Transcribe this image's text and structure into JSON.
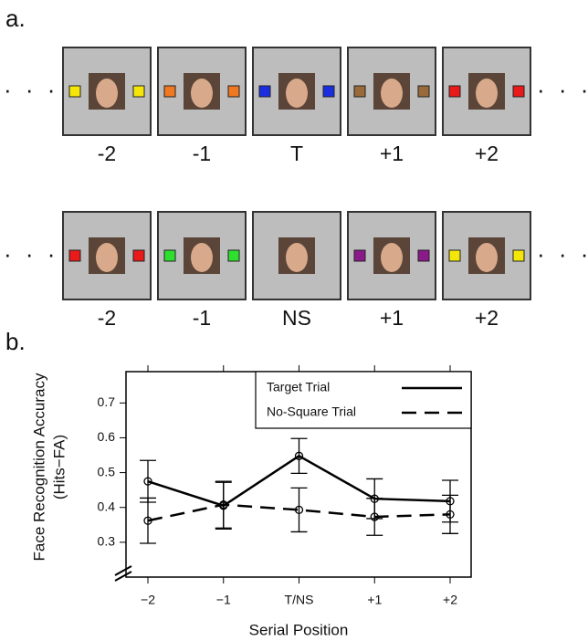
{
  "panel_a": {
    "label": "a.",
    "ellipsis": "· · ·",
    "rows": [
      {
        "frames": [
          {
            "label": "-2",
            "square_color": "#f5e60a"
          },
          {
            "label": "-1",
            "square_color": "#f07820"
          },
          {
            "label": "T",
            "square_color": "#1a2ee0"
          },
          {
            "label": "+1",
            "square_color": "#9a6a3a"
          },
          {
            "label": "+2",
            "square_color": "#e81a1a"
          }
        ]
      },
      {
        "frames": [
          {
            "label": "-2",
            "square_color": "#e81a1a"
          },
          {
            "label": "-1",
            "square_color": "#2ee02e"
          },
          {
            "label": "NS"
          },
          {
            "label": "+1",
            "square_color": "#8a1a8a"
          },
          {
            "label": "+2",
            "square_color": "#f5e60a"
          }
        ]
      }
    ]
  },
  "panel_b": {
    "label": "b."
  },
  "chart_data": {
    "type": "line",
    "x_label": "Serial Position",
    "y_label": [
      "Face Recognition Accuracy",
      "(Hits−FA)"
    ],
    "categories": [
      "−2",
      "−1",
      "T/NS",
      "+1",
      "+2"
    ],
    "ylim": [
      0.2,
      0.79
    ],
    "yticks": [
      0.3,
      0.4,
      0.5,
      0.6,
      0.7
    ],
    "legend": "upper right",
    "series": [
      {
        "name": "Target Trial",
        "color": "#000000",
        "line_style": "solid",
        "values": [
          0.475,
          0.405,
          0.548,
          0.425,
          0.418
        ],
        "errors": [
          0.06,
          0.067,
          0.05,
          0.057,
          0.06
        ]
      },
      {
        "name": "No-Square Trial",
        "color": "#000000",
        "line_style": "dashed",
        "values": [
          0.362,
          0.408,
          0.393,
          0.373,
          0.38
        ],
        "errors": [
          0.065,
          0.067,
          0.063,
          0.053,
          0.055
        ]
      }
    ]
  }
}
